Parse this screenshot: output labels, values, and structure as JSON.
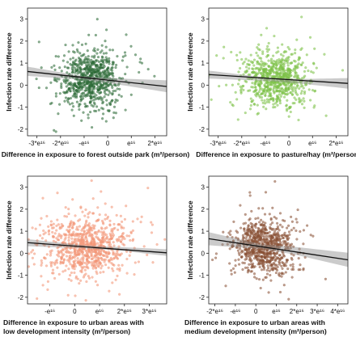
{
  "chart_data": [
    {
      "type": "scatter",
      "ylabel": "Infection rate difference",
      "xlabel_lines": [
        "Difference in exposure to forest outside park (m²/person)"
      ],
      "xticks": [
        {
          "v": -3,
          "label": "-3*e¹⁶"
        },
        {
          "v": -2,
          "label": "-2*e¹⁶"
        },
        {
          "v": -1,
          "label": "-e¹⁶"
        },
        {
          "v": 0,
          "label": "0"
        },
        {
          "v": 1,
          "label": "e¹⁶"
        },
        {
          "v": 2,
          "label": "2*e¹⁶"
        }
      ],
      "yticks": [
        -2,
        -1,
        0,
        1,
        2,
        3
      ],
      "xlim": [
        -3.4,
        2.5
      ],
      "ylim": [
        -2.3,
        3.5
      ],
      "point_color": "#2e6b38",
      "cloud": {
        "center": [
          -0.7,
          0.25
        ],
        "spread": [
          0.62,
          0.62
        ],
        "n": 750,
        "seed": 11
      },
      "fit_line": [
        [
          -3.4,
          0.62
        ],
        [
          2.5,
          -0.06
        ]
      ],
      "ci_band": {
        "lower": [
          [
            -3.4,
            0.42
          ],
          [
            -1.0,
            0.24
          ],
          [
            0.5,
            0.02
          ],
          [
            2.5,
            -0.32
          ]
        ],
        "upper": [
          [
            -3.4,
            0.84
          ],
          [
            -1.0,
            0.4
          ],
          [
            0.5,
            0.3
          ],
          [
            2.5,
            0.22
          ]
        ]
      }
    },
    {
      "type": "scatter",
      "ylabel": "Infection rate difference",
      "xlabel_lines": [
        "Difference in exposure to pasture/hay (m²/person)"
      ],
      "xticks": [
        {
          "v": -3,
          "label": "-3*e¹⁶"
        },
        {
          "v": -2,
          "label": "-2*e¹⁶"
        },
        {
          "v": -1,
          "label": "-e¹⁶"
        },
        {
          "v": 0,
          "label": "0"
        },
        {
          "v": 1,
          "label": "e¹⁶"
        },
        {
          "v": 2,
          "label": "2*e¹⁶"
        }
      ],
      "yticks": [
        -2,
        -1,
        0,
        1,
        2,
        3
      ],
      "xlim": [
        -3.4,
        2.5
      ],
      "ylim": [
        -2.3,
        3.5
      ],
      "point_color": "#7dc148",
      "cloud": {
        "center": [
          -0.6,
          0.25
        ],
        "spread": [
          0.65,
          0.6
        ],
        "n": 750,
        "seed": 23
      },
      "fit_line": [
        [
          -3.4,
          0.48
        ],
        [
          2.5,
          0.08
        ]
      ],
      "ci_band": {
        "lower": [
          [
            -3.4,
            0.3
          ],
          [
            -0.8,
            0.18
          ],
          [
            0.6,
            0.06
          ],
          [
            2.5,
            -0.16
          ]
        ],
        "upper": [
          [
            -3.4,
            0.66
          ],
          [
            -0.8,
            0.32
          ],
          [
            0.6,
            0.28
          ],
          [
            2.5,
            0.32
          ]
        ]
      }
    },
    {
      "type": "scatter",
      "ylabel": "Infection rate difference",
      "xlabel_lines": [
        "Difference in exposure to urban areas with",
        "low development intensity (m²/person)"
      ],
      "xticks": [
        {
          "v": -1,
          "label": "-e¹⁶"
        },
        {
          "v": 0,
          "label": "0"
        },
        {
          "v": 1,
          "label": "e¹⁶"
        },
        {
          "v": 2,
          "label": "2*e¹⁶"
        },
        {
          "v": 3,
          "label": "3*e¹⁶"
        }
      ],
      "yticks": [
        -2,
        -1,
        0,
        1,
        2,
        3
      ],
      "xlim": [
        -1.9,
        3.7
      ],
      "ylim": [
        -2.3,
        3.5
      ],
      "point_color": "#f29677",
      "cloud": {
        "center": [
          0.5,
          0.3
        ],
        "spread": [
          0.85,
          0.65
        ],
        "n": 850,
        "seed": 37
      },
      "fit_line": [
        [
          -1.9,
          0.48
        ],
        [
          3.7,
          0.02
        ]
      ],
      "ci_band": {
        "lower": [
          [
            -1.9,
            0.32
          ],
          [
            0.4,
            0.22
          ],
          [
            1.8,
            0.12
          ],
          [
            3.7,
            -0.12
          ]
        ],
        "upper": [
          [
            -1.9,
            0.64
          ],
          [
            0.4,
            0.36
          ],
          [
            1.8,
            0.28
          ],
          [
            3.7,
            0.18
          ]
        ]
      }
    },
    {
      "type": "scatter",
      "ylabel": "Infection rate difference",
      "xlabel_lines": [
        "Difference in exposure to urban areas with",
        "medium development intensity (m²/person)"
      ],
      "xticks": [
        {
          "v": -2,
          "label": "-2*e¹⁶"
        },
        {
          "v": -1,
          "label": "-e¹⁶"
        },
        {
          "v": 0,
          "label": "0"
        },
        {
          "v": 1,
          "label": "e¹⁶"
        },
        {
          "v": 2,
          "label": "2*e¹⁶"
        },
        {
          "v": 3,
          "label": "3*e¹⁶"
        },
        {
          "v": 4,
          "label": "4*e¹⁶"
        }
      ],
      "yticks": [
        -2,
        -1,
        0,
        1,
        2,
        3
      ],
      "xlim": [
        -2.3,
        4.5
      ],
      "ylim": [
        -2.3,
        3.5
      ],
      "point_color": "#8a5236",
      "cloud": {
        "center": [
          0.4,
          0.3
        ],
        "spread": [
          0.7,
          0.6
        ],
        "n": 800,
        "seed": 53
      },
      "fit_line": [
        [
          -2.3,
          0.66
        ],
        [
          4.5,
          -0.3
        ]
      ],
      "ci_band": {
        "lower": [
          [
            -2.3,
            0.36
          ],
          [
            0.3,
            0.2
          ],
          [
            2.0,
            -0.08
          ],
          [
            4.5,
            -0.62
          ]
        ],
        "upper": [
          [
            -2.3,
            0.96
          ],
          [
            0.3,
            0.4
          ],
          [
            2.0,
            0.28
          ],
          [
            4.5,
            0.02
          ]
        ]
      }
    }
  ]
}
